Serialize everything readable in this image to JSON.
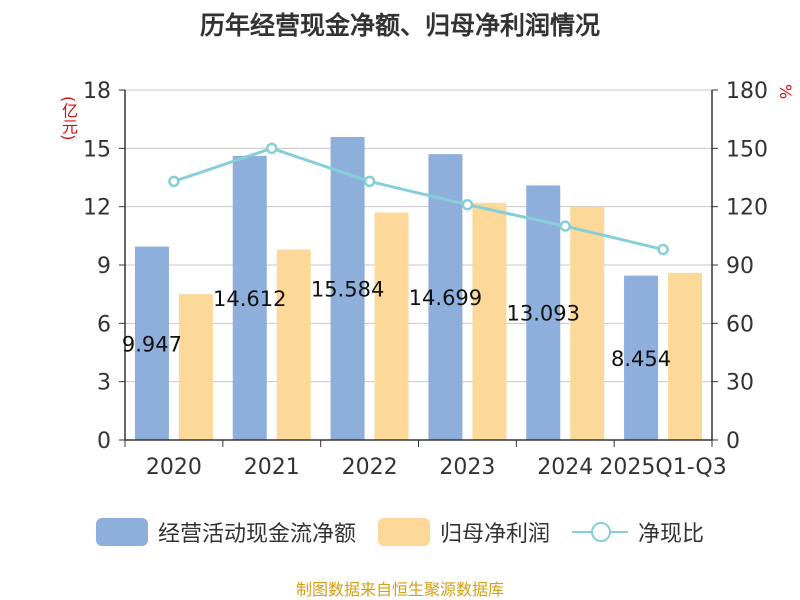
{
  "title": "历年经营现金净额、归母净利润情况",
  "left_unit": "(亿元)",
  "right_unit": "%",
  "source": "制图数据来自恒生聚源数据库",
  "legend": [
    {
      "label": "经营活动现金流净额",
      "color": "#8eaedb",
      "kind": "bar"
    },
    {
      "label": "归母净利润",
      "color": "#fcd998",
      "kind": "bar"
    },
    {
      "label": "净现比",
      "color": "#86cfd9",
      "kind": "line"
    }
  ],
  "chart_data": {
    "type": "bar",
    "categories": [
      "2020",
      "2021",
      "2022",
      "2023",
      "2024",
      "2025Q1-Q3"
    ],
    "series": [
      {
        "name": "经营活动现金流净额",
        "axis": "left",
        "type": "bar",
        "color": "#8eaedb",
        "values": [
          9.947,
          14.612,
          15.584,
          14.699,
          13.093,
          8.454
        ],
        "labels": [
          "9.947",
          "14.612",
          "15.584",
          "14.699",
          "13.093",
          "8.454"
        ]
      },
      {
        "name": "归母净利润",
        "axis": "left",
        "type": "bar",
        "color": "#fcd998",
        "values": [
          7.5,
          9.8,
          11.7,
          12.2,
          12.0,
          8.6
        ]
      },
      {
        "name": "净现比",
        "axis": "right",
        "type": "line",
        "color": "#86cfd9",
        "values": [
          133,
          150,
          133,
          121,
          110,
          98
        ]
      }
    ],
    "y_left": {
      "min": 0,
      "max": 18,
      "ticks": [
        "0",
        "3",
        "6",
        "9",
        "12",
        "15",
        "18"
      ]
    },
    "y_right": {
      "min": 0,
      "max": 180,
      "ticks": [
        "0",
        "30",
        "60",
        "90",
        "120",
        "150",
        "180"
      ]
    },
    "grid": true
  }
}
